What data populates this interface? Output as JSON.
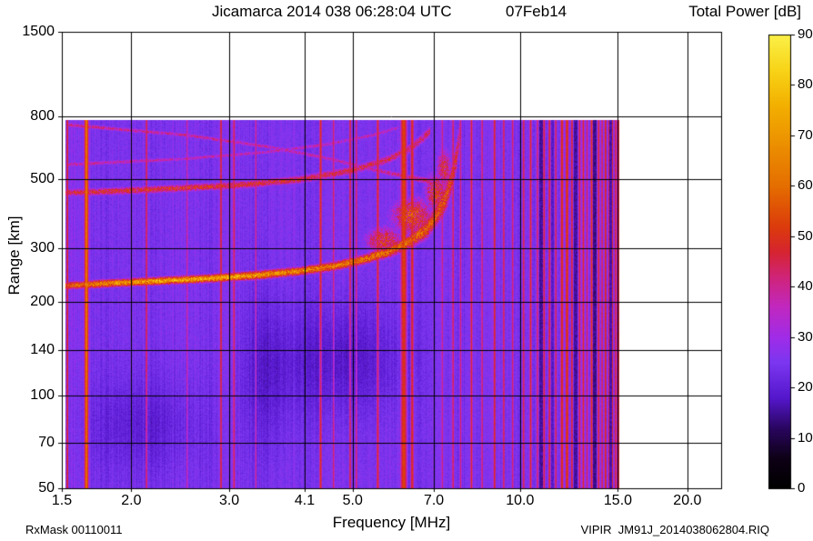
{
  "title": {
    "main": "Jicamarca 2014 038 06:28:04 UTC",
    "date": "07Feb14"
  },
  "colorbar_title": "Total Power [dB]",
  "axes": {
    "x_label": "Frequency [MHz]",
    "y_label": "Range [km]"
  },
  "footer": {
    "left": "RxMask 00110011",
    "right": "VIPIR  JM91J_2014038062804.RIQ"
  },
  "chart_data": {
    "type": "heatmap",
    "title": "Jicamarca 2014 038 06:28:04 UTC 07Feb14",
    "xlabel": "Frequency [MHz]",
    "ylabel": "Range [km]",
    "x_scale": "log",
    "y_scale": "log",
    "xlim": [
      1.5,
      23
    ],
    "ylim": [
      50,
      1500
    ],
    "grid": true,
    "x_ticks": [
      "1.5",
      "2.0",
      "3.0",
      "4.1",
      "5.0",
      "7.0",
      "10.0",
      "15.0",
      "20.0"
    ],
    "y_ticks": [
      "50",
      "70",
      "100",
      "140",
      "200",
      "300",
      "500",
      "800",
      "1500"
    ],
    "colorbar": {
      "label": "Total Power [dB]",
      "min": 0,
      "max": 90,
      "ticks": [
        "0",
        "10",
        "20",
        "30",
        "40",
        "50",
        "60",
        "70",
        "80",
        "90"
      ]
    },
    "colormap": [
      [
        0,
        "#000000"
      ],
      [
        6,
        "#0e0116"
      ],
      [
        12,
        "#2a0660"
      ],
      [
        18,
        "#5517cc"
      ],
      [
        25,
        "#7c37f0"
      ],
      [
        30,
        "#a02ce8"
      ],
      [
        36,
        "#c128c0"
      ],
      [
        42,
        "#d02478"
      ],
      [
        47,
        "#d62530"
      ],
      [
        52,
        "#dc3c0c"
      ],
      [
        60,
        "#e56e00"
      ],
      [
        68,
        "#ec8f00"
      ],
      [
        76,
        "#f3b000"
      ],
      [
        83,
        "#f8d418"
      ],
      [
        90,
        "#fbf148"
      ]
    ],
    "noise_floor_db": 25,
    "data_extent": {
      "f_min": 1.52,
      "f_max": 15.1,
      "r_min": 50,
      "r_max": 780
    },
    "rfi_lines": [
      [
        1.535,
        50,
        1.6
      ],
      [
        1.661,
        62,
        3
      ],
      [
        2.13,
        46,
        1.8
      ],
      [
        2.52,
        40,
        1.5
      ],
      [
        2.9,
        48,
        1.8
      ],
      [
        3.06,
        46,
        1.8
      ],
      [
        3.35,
        42,
        1.5
      ],
      [
        4.38,
        50,
        2
      ],
      [
        4.62,
        44,
        1.6
      ],
      [
        4.95,
        47,
        1.8
      ],
      [
        5.08,
        44,
        1.6
      ],
      [
        5.55,
        49,
        2
      ],
      [
        6.18,
        53,
        5
      ],
      [
        6.4,
        50,
        2.5
      ],
      [
        7.25,
        42,
        1.6
      ],
      [
        7.58,
        45,
        1.8
      ],
      [
        7.82,
        43,
        1.6
      ],
      [
        8.18,
        48,
        1.8
      ],
      [
        8.55,
        44,
        1.6
      ],
      [
        9.0,
        49,
        1.8
      ],
      [
        9.35,
        46,
        1.6
      ],
      [
        9.7,
        44,
        1.6
      ],
      [
        10.15,
        46,
        1.8
      ],
      [
        10.45,
        49,
        1.8
      ],
      [
        10.75,
        44,
        1.6
      ],
      [
        11.05,
        47,
        1.8
      ],
      [
        11.3,
        49,
        1.8
      ],
      [
        11.6,
        46,
        1.6
      ],
      [
        11.9,
        51,
        2.4
      ],
      [
        12.15,
        52,
        2.6
      ],
      [
        12.4,
        48,
        1.8
      ],
      [
        12.8,
        47,
        1.8
      ],
      [
        13.0,
        49,
        1.8
      ],
      [
        13.2,
        45,
        1.6
      ],
      [
        13.45,
        51,
        1.8
      ],
      [
        13.85,
        48,
        1.8
      ],
      [
        14.05,
        46,
        1.6
      ],
      [
        14.25,
        50,
        1.8
      ],
      [
        14.45,
        45,
        1.6
      ],
      [
        14.65,
        49,
        1.8
      ],
      [
        14.85,
        47,
        1.6
      ],
      [
        15.0,
        51,
        1.8
      ],
      [
        15.07,
        47,
        1.5
      ]
    ],
    "dark_lines": [
      [
        10.9,
        13,
        2
      ],
      [
        11.45,
        16,
        1.5
      ],
      [
        12.6,
        13,
        2
      ],
      [
        13.65,
        12,
        2
      ],
      [
        14.55,
        14,
        1.5
      ]
    ],
    "traces": [
      {
        "name": "f-layer-first-hop",
        "points": [
          [
            1.52,
            226,
            54,
            6
          ],
          [
            1.8,
            230,
            64,
            6
          ],
          [
            2.2,
            234,
            70,
            6
          ],
          [
            2.8,
            239,
            70,
            6
          ],
          [
            3.4,
            245,
            68,
            7
          ],
          [
            4.0,
            252,
            65,
            7
          ],
          [
            4.6,
            261,
            62,
            8
          ],
          [
            5.2,
            274,
            60,
            9
          ],
          [
            5.8,
            291,
            58,
            12
          ],
          [
            6.3,
            312,
            56,
            16
          ],
          [
            6.8,
            345,
            55,
            24
          ],
          [
            7.1,
            385,
            54,
            32
          ],
          [
            7.35,
            435,
            52,
            45
          ],
          [
            7.55,
            505,
            48,
            60
          ],
          [
            7.7,
            600,
            44,
            75
          ],
          [
            7.8,
            710,
            40,
            80
          ]
        ]
      },
      {
        "name": "f-layer-second-hop",
        "points": [
          [
            1.52,
            452,
            44,
            12
          ],
          [
            2.0,
            460,
            47,
            12
          ],
          [
            3.0,
            476,
            47,
            13
          ],
          [
            4.0,
            498,
            45,
            14
          ],
          [
            5.0,
            534,
            44,
            16
          ],
          [
            5.8,
            580,
            43,
            18
          ],
          [
            6.4,
            635,
            42,
            22
          ],
          [
            6.9,
            715,
            40,
            30
          ]
        ]
      },
      {
        "name": "oblique-descending-echo",
        "points": [
          [
            1.54,
            750,
            40,
            12
          ],
          [
            2.5,
            695,
            38,
            11
          ],
          [
            3.5,
            638,
            37,
            10
          ],
          [
            4.5,
            585,
            37,
            10
          ],
          [
            5.5,
            535,
            38,
            11
          ],
          [
            6.3,
            508,
            40,
            12
          ],
          [
            6.9,
            492,
            41,
            14
          ]
        ]
      },
      {
        "name": "oblique-ascending-echo",
        "points": [
          [
            1.54,
            558,
            38,
            9
          ],
          [
            2.5,
            582,
            36,
            9
          ],
          [
            3.5,
            612,
            36,
            9
          ],
          [
            4.5,
            648,
            36,
            10
          ],
          [
            5.5,
            698,
            36,
            11
          ],
          [
            6.05,
            735,
            35,
            12
          ]
        ]
      }
    ],
    "diffuse": [
      [
        6.4,
        380,
        51,
        0.55,
        55
      ],
      [
        5.7,
        315,
        48,
        0.45,
        35
      ],
      [
        7.05,
        450,
        50,
        0.3,
        70
      ],
      [
        7.3,
        540,
        46,
        0.22,
        85
      ]
    ],
    "dark_patches": [
      [
        4.8,
        130,
        -7,
        1.0,
        45
      ],
      [
        2.1,
        80,
        -5,
        0.4,
        22
      ],
      [
        3.5,
        115,
        -5,
        0.25,
        60
      ]
    ]
  }
}
